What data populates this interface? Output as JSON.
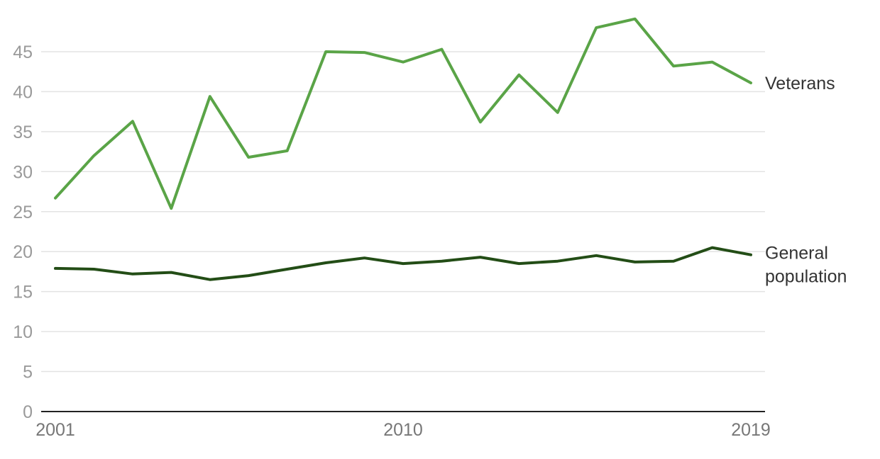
{
  "chart_data": {
    "type": "line",
    "title": "",
    "xlabel": "",
    "ylabel": "",
    "xlim": [
      2001,
      2019
    ],
    "ylim": [
      0,
      49
    ],
    "y_ticks": [
      0,
      5,
      10,
      15,
      20,
      25,
      30,
      35,
      40,
      45
    ],
    "x_tick_labels": [
      "2001",
      "2010",
      "2019"
    ],
    "x_ticks": [
      2001,
      2010,
      2019
    ],
    "grid": true,
    "legend": "direct labels at line ends (right)",
    "x": [
      2001,
      2002,
      2003,
      2004,
      2005,
      2006,
      2007,
      2008,
      2009,
      2010,
      2011,
      2012,
      2013,
      2014,
      2015,
      2016,
      2017,
      2018,
      2019
    ],
    "series": [
      {
        "name": "Veterans",
        "color": "#5aa447",
        "values": [
          26.7,
          32.0,
          36.3,
          25.4,
          39.4,
          31.8,
          32.6,
          45.0,
          44.9,
          43.7,
          45.3,
          36.2,
          42.1,
          37.4,
          48.0,
          49.1,
          43.2,
          43.7,
          41.1
        ]
      },
      {
        "name": "General population",
        "label_lines": [
          "General",
          "population"
        ],
        "color": "#234d16",
        "values": [
          17.9,
          17.8,
          17.2,
          17.4,
          16.5,
          17.0,
          17.8,
          18.6,
          19.2,
          18.5,
          18.8,
          19.3,
          18.5,
          18.8,
          19.5,
          18.7,
          18.8,
          20.5,
          19.6
        ]
      }
    ]
  }
}
